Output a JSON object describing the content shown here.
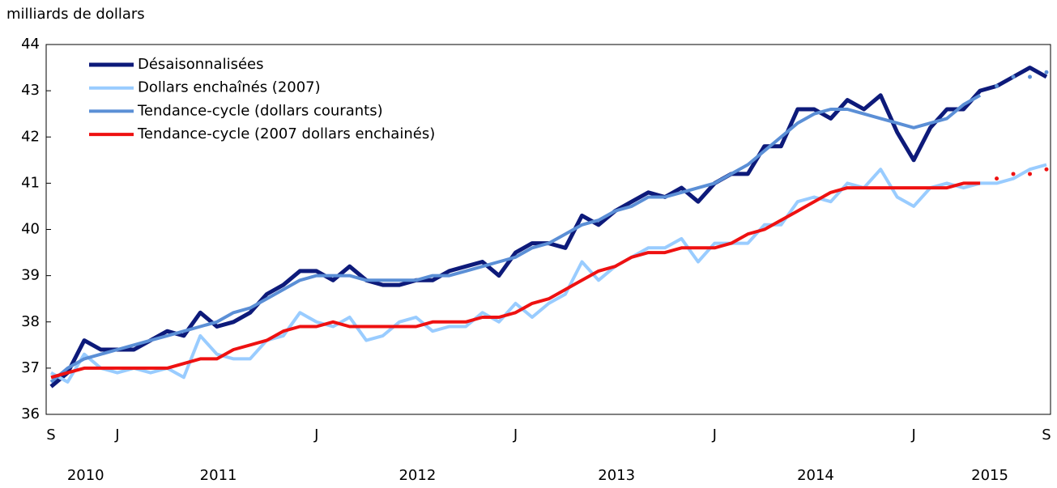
{
  "chart_data": {
    "type": "line",
    "y_axis_label": "milliards de dollars",
    "categories": [
      "S",
      null,
      null,
      null,
      "J",
      null,
      null,
      null,
      null,
      null,
      null,
      null,
      null,
      null,
      null,
      null,
      "J",
      null,
      null,
      null,
      null,
      null,
      null,
      null,
      null,
      null,
      null,
      null,
      "J",
      null,
      null,
      null,
      null,
      null,
      null,
      null,
      null,
      null,
      null,
      null,
      "J",
      null,
      null,
      null,
      null,
      null,
      null,
      null,
      null,
      null,
      null,
      null,
      "J",
      null,
      null,
      null,
      null,
      null,
      null,
      null,
      "S"
    ],
    "years": [
      "2010",
      "2011",
      "2012",
      "2013",
      "2014",
      "2015"
    ],
    "ylim": [
      36,
      44
    ],
    "yticks": [
      36,
      37,
      38,
      39,
      40,
      41,
      42,
      43,
      44
    ],
    "grid": false,
    "legend": "top-left",
    "series": [
      {
        "name": "Désaisonnalisées",
        "color": "#0d1a7a",
        "values": [
          36.6,
          36.9,
          37.6,
          37.4,
          37.4,
          37.4,
          37.6,
          37.8,
          37.7,
          38.2,
          37.9,
          38.0,
          38.2,
          38.6,
          38.8,
          39.1,
          39.1,
          38.9,
          39.2,
          38.9,
          38.8,
          38.8,
          38.9,
          38.9,
          39.1,
          39.2,
          39.3,
          39.0,
          39.5,
          39.7,
          39.7,
          39.6,
          40.3,
          40.1,
          40.4,
          40.6,
          40.8,
          40.7,
          40.9,
          40.6,
          41.0,
          41.2,
          41.2,
          41.8,
          41.8,
          42.6,
          42.6,
          42.4,
          42.8,
          42.6,
          42.9,
          42.1,
          41.5,
          42.2,
          42.6,
          42.6,
          43.0,
          43.1,
          43.3,
          43.5,
          43.3
        ]
      },
      {
        "name": "Dollars enchaînés (2007)",
        "color": "#99ccff",
        "values": [
          36.9,
          36.7,
          37.3,
          37.0,
          36.9,
          37.0,
          36.9,
          37.0,
          36.8,
          37.7,
          37.3,
          37.2,
          37.2,
          37.6,
          37.7,
          38.2,
          38.0,
          37.9,
          38.1,
          37.6,
          37.7,
          38.0,
          38.1,
          37.8,
          37.9,
          37.9,
          38.2,
          38.0,
          38.4,
          38.1,
          38.4,
          38.6,
          39.3,
          38.9,
          39.2,
          39.4,
          39.6,
          39.6,
          39.8,
          39.3,
          39.7,
          39.7,
          39.7,
          40.1,
          40.1,
          40.6,
          40.7,
          40.6,
          41.0,
          40.9,
          41.3,
          40.7,
          40.5,
          40.9,
          41.0,
          40.9,
          41.0,
          41.0,
          41.1,
          41.3,
          41.4
        ]
      },
      {
        "name": "Tendance-cycle (dollars courants)",
        "color": "#5b8fd6",
        "dotted_from": 57,
        "values": [
          36.7,
          37.0,
          37.2,
          37.3,
          37.4,
          37.5,
          37.6,
          37.7,
          37.8,
          37.9,
          38.0,
          38.2,
          38.3,
          38.5,
          38.7,
          38.9,
          39.0,
          39.0,
          39.0,
          38.9,
          38.9,
          38.9,
          38.9,
          39.0,
          39.0,
          39.1,
          39.2,
          39.3,
          39.4,
          39.6,
          39.7,
          39.9,
          40.1,
          40.2,
          40.4,
          40.5,
          40.7,
          40.7,
          40.8,
          40.9,
          41.0,
          41.2,
          41.4,
          41.7,
          42.0,
          42.3,
          42.5,
          42.6,
          42.6,
          42.5,
          42.4,
          42.3,
          42.2,
          42.3,
          42.4,
          42.7,
          42.9,
          43.1,
          43.3,
          43.3,
          43.4
        ]
      },
      {
        "name": "Tendance-cycle (2007 dollars enchainés)",
        "color": "#ee1111",
        "dotted_from": 57,
        "values": [
          36.8,
          36.9,
          37.0,
          37.0,
          37.0,
          37.0,
          37.0,
          37.0,
          37.1,
          37.2,
          37.2,
          37.4,
          37.5,
          37.6,
          37.8,
          37.9,
          37.9,
          38.0,
          37.9,
          37.9,
          37.9,
          37.9,
          37.9,
          38.0,
          38.0,
          38.0,
          38.1,
          38.1,
          38.2,
          38.4,
          38.5,
          38.7,
          38.9,
          39.1,
          39.2,
          39.4,
          39.5,
          39.5,
          39.6,
          39.6,
          39.6,
          39.7,
          39.9,
          40.0,
          40.2,
          40.4,
          40.6,
          40.8,
          40.9,
          40.9,
          40.9,
          40.9,
          40.9,
          40.9,
          40.9,
          41.0,
          41.0,
          41.1,
          41.2,
          41.2,
          41.3
        ]
      }
    ]
  }
}
